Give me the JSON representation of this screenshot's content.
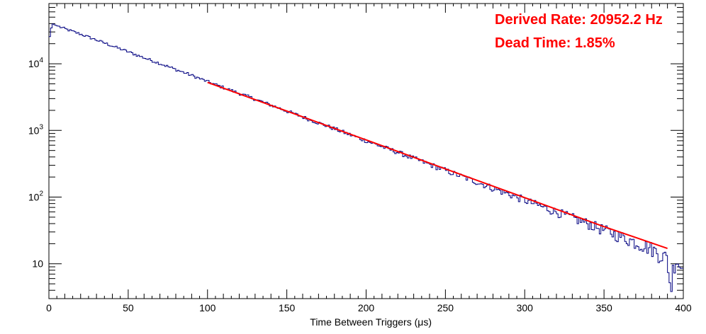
{
  "chart_data": {
    "type": "line",
    "title": "",
    "xlabel": "Time Between Triggers (μs)",
    "ylabel": "",
    "xlim": [
      0,
      400
    ],
    "ylim": [
      3,
      80000
    ],
    "yscale": "log",
    "grid": false,
    "x_ticks": [
      "0",
      "50",
      "100",
      "150",
      "200",
      "250",
      "300",
      "350",
      "400"
    ],
    "y_ticks": [
      {
        "base": "10",
        "exp": "4",
        "value": 10000
      },
      {
        "base": "10",
        "exp": "3",
        "value": 1000
      },
      {
        "base": "10",
        "exp": "2",
        "value": 100
      },
      {
        "base": "10",
        "exp": "",
        "value": 10
      }
    ],
    "series": [
      {
        "kind": "histogram",
        "color": "#000080",
        "x": [
          0,
          2,
          4,
          10,
          20,
          30,
          40,
          50,
          60,
          70,
          80,
          90,
          100,
          110,
          120,
          130,
          140,
          150,
          160,
          170,
          180,
          190,
          200,
          210,
          220,
          230,
          240,
          250,
          260,
          270,
          280,
          290,
          300,
          310,
          320,
          330,
          340,
          350,
          360,
          370,
          380,
          385,
          390,
          392,
          394,
          396,
          398,
          400
        ],
        "y": [
          22000,
          40000,
          38000,
          33500,
          27800,
          22700,
          18500,
          15100,
          12300,
          10100,
          8200,
          6700,
          5400,
          4400,
          3600,
          2950,
          2400,
          1950,
          1590,
          1300,
          1060,
          860,
          700,
          570,
          470,
          380,
          310,
          252,
          205,
          168,
          136,
          111,
          90,
          73,
          60,
          49,
          40,
          32,
          26,
          21,
          17,
          14,
          12,
          4,
          10,
          12,
          9,
          9
        ]
      },
      {
        "kind": "fit",
        "color": "#ff0000",
        "x": [
          100,
          150,
          200,
          250,
          300,
          350,
          390
        ],
        "y": [
          5250,
          1950,
          720,
          265,
          98,
          36,
          17
        ]
      }
    ],
    "annotations": [
      {
        "text": "Derived Rate: 20952.2 Hz",
        "color": "#ff0000",
        "position": "top-right"
      },
      {
        "text": "Dead Time: 1.85%",
        "color": "#ff0000",
        "position": "top-right"
      }
    ]
  }
}
